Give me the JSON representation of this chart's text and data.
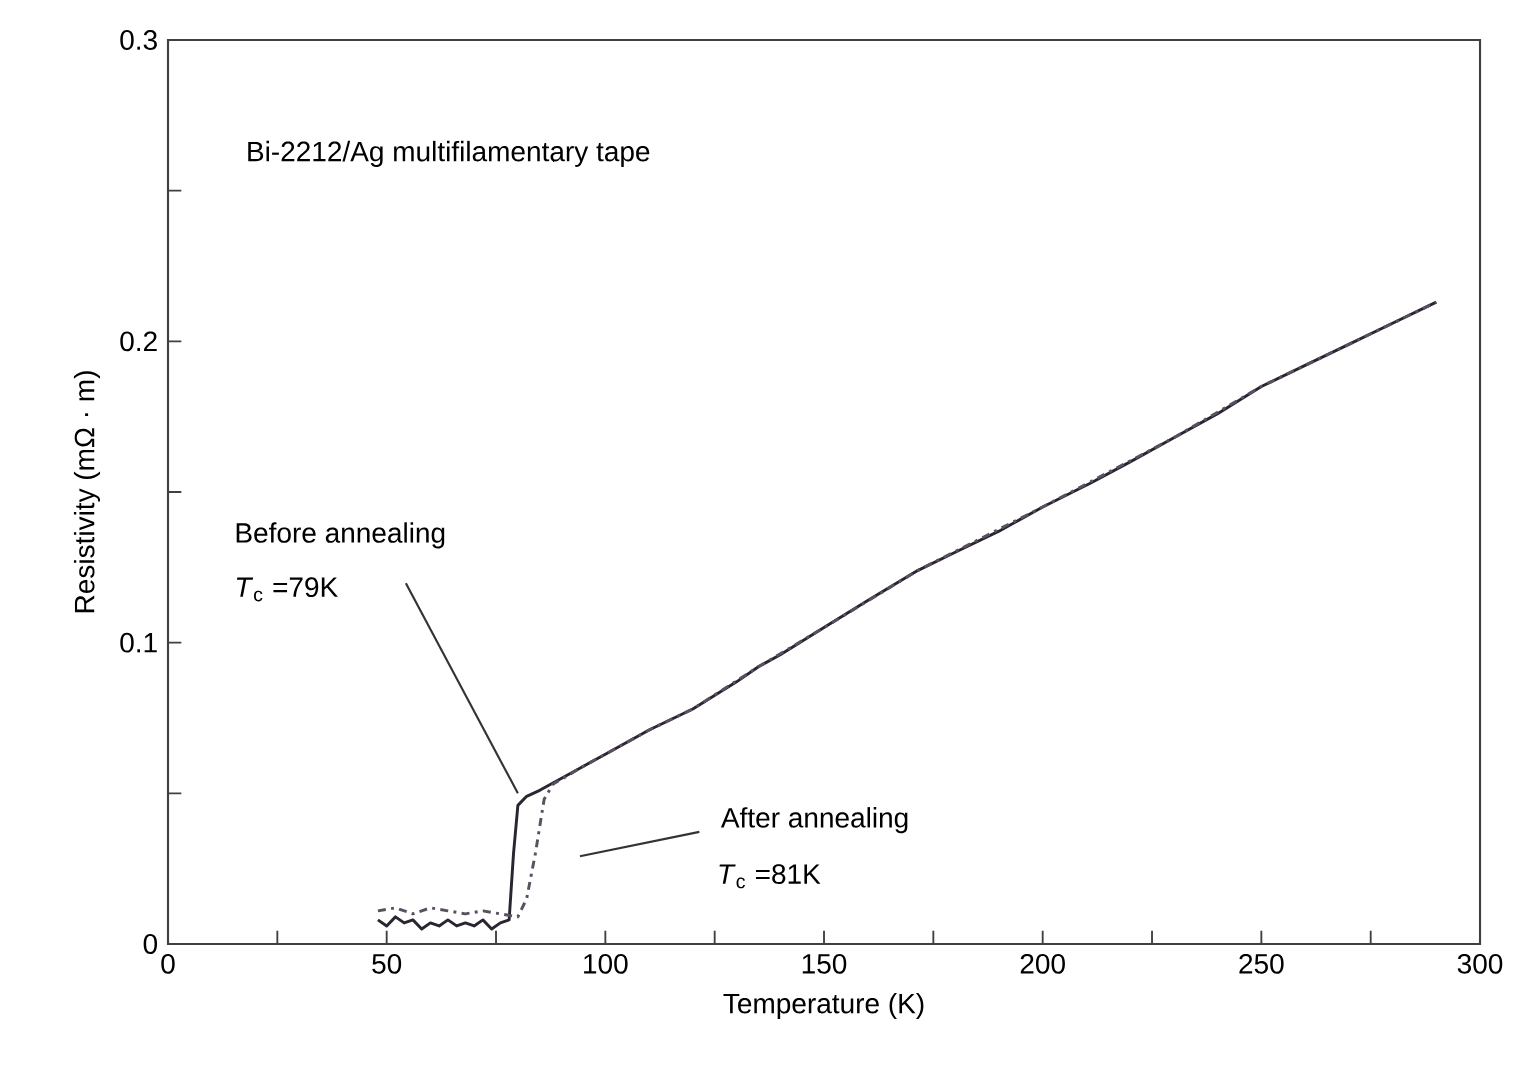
{
  "chart_data": {
    "type": "line",
    "xlabel": "Temperature (K)",
    "ylabel": "Resistivity (mΩ · m)",
    "xlim": [
      0,
      300
    ],
    "ylim": [
      0,
      0.3
    ],
    "xticks": [
      0,
      {
        "value": 25,
        "label": null
      },
      50,
      {
        "value": 75,
        "label": null
      },
      100,
      {
        "value": 125,
        "label": null
      },
      150,
      {
        "value": 175,
        "label": null
      },
      200,
      {
        "value": 225,
        "label": null
      },
      250,
      {
        "value": 275,
        "label": null
      },
      300
    ],
    "yticks": [
      0,
      {
        "value": 0.05,
        "label": null
      },
      0.1,
      {
        "value": 0.15,
        "label": null
      },
      0.2,
      {
        "value": 0.25,
        "label": null
      },
      0.3
    ],
    "series": [
      {
        "color": "#2a2530",
        "line_style": "solid",
        "x": [
          48,
          50,
          52,
          54,
          56,
          58,
          60,
          62,
          64,
          66,
          68,
          70,
          72,
          74,
          76,
          78,
          79,
          80,
          82,
          85,
          90,
          95,
          100,
          105,
          110,
          120,
          130,
          135,
          140,
          150,
          160,
          171.5,
          180,
          190,
          200,
          211,
          220,
          230,
          240,
          250,
          260,
          270,
          280,
          290
        ],
        "values": [
          0.008,
          0.006,
          0.009,
          0.007,
          0.008,
          0.005,
          0.007,
          0.006,
          0.008,
          0.006,
          0.007,
          0.006,
          0.008,
          0.005,
          0.007,
          0.008,
          0.03,
          0.046,
          0.049,
          0.051,
          0.055,
          0.059,
          0.063,
          0.067,
          0.071,
          0.078,
          0.087,
          0.092,
          0.096,
          0.105,
          0.114,
          0.124,
          0.13,
          0.137,
          0.145,
          0.153,
          0.16,
          0.168,
          0.176,
          0.185,
          0.192,
          0.199,
          0.206,
          0.213
        ]
      },
      {
        "color": "#5a5060",
        "line_style": "dashed",
        "x": [
          48,
          52,
          56,
          60,
          64,
          68,
          72,
          76,
          80,
          82,
          84,
          86,
          88,
          95,
          100,
          110,
          120,
          135,
          150,
          171.5,
          200,
          230,
          250,
          270,
          290
        ],
        "values": [
          0.011,
          0.012,
          0.01,
          0.012,
          0.011,
          0.01,
          0.011,
          0.01,
          0.009,
          0.015,
          0.03,
          0.048,
          0.053,
          0.059,
          0.063,
          0.071,
          0.078,
          0.092,
          0.105,
          0.124,
          0.145,
          0.168,
          0.185,
          0.199,
          0.213
        ]
      }
    ],
    "annotations": [
      "Bi-2212/Ag multifilamentary tape",
      {
        "text": "Before annealing",
        "x": 80,
        "y": 0.05
      },
      "*T*$_{c}$ =79K",
      "After annealing",
      "*T*$_{c}$ =81K"
    ]
  }
}
